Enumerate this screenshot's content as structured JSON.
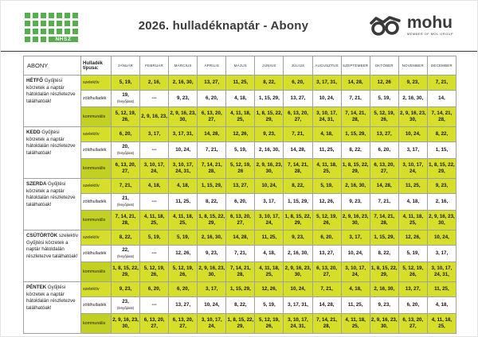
{
  "header": {
    "title": "2026. hulladéknaptár - Abony",
    "nhsz_logo_text": "NHSZ",
    "mohu_logo_text": "mohu",
    "mohu_subtext": "MEMBER OF MOL GROUP"
  },
  "colors": {
    "brand_green": "#57ae4e",
    "highlight_yellow_green": "#d6de2a",
    "kommunalis_label_green": "#c2d021",
    "logo_dark": "#3a3a3a"
  },
  "table": {
    "corner_label": "ABONY",
    "type_header": "Hulladék típusa:",
    "months": [
      "JANUÁR",
      "FEBRUÁR",
      "MÁRCIUS",
      "ÁPRILIS",
      "MÁJUS",
      "JÚNIUS",
      "JÚLIUS",
      "AUGUSZTUS",
      "SZEPTEMBER",
      "OKTÓBER",
      "NOVEMBER",
      "DECEMBER"
    ],
    "waste_types": [
      "szelektív",
      "zöldhulladék",
      "kommunális"
    ],
    "days": [
      {
        "name": "HÉTFŐ",
        "description": "Gyűjtési körzetek a naptár hátoldalán részletezve találhatóak!",
        "rows": [
          [
            "5, 19,",
            "2, 16,",
            "2, 16, 30,",
            "13, 27,",
            "11, 25,",
            "8, 22,",
            "6, 20,",
            "3, 17, 31,",
            "14, 28,",
            "12, 26",
            "9, 23,",
            "7, 21,"
          ],
          [
            "19,\n(fenyőjárat)",
            "---",
            "9, 23,",
            "6, 20,",
            "4, 18,",
            "1, 15, 29,",
            "13, 27,",
            "10, 24,",
            "7, 21,",
            "5, 19,",
            "2, 16, 30,",
            "14,"
          ],
          [
            "5, 12, 19, 26,",
            "2, 9, 16, 23,",
            "2, 9, 16, 23, 30,",
            "6, 13, 20, 27,",
            "4, 11, 18, 25,",
            "1, 8, 15, 22, 29,",
            "6, 13, 20, 27,",
            "3, 10, 17, 24, 31,",
            "7, 14, 21, 28,",
            "5, 12, 19, 26,",
            "2, 9, 16, 23, 30,",
            "7, 14, 21, 28,"
          ]
        ]
      },
      {
        "name": "KEDD",
        "description": "Gyűjtési körzetek a naptár hátoldalán részletezve találhatóak!",
        "rows": [
          [
            "6, 20,",
            "3, 17,",
            "3, 17, 31,",
            "14, 28,",
            "12, 26,",
            "9, 23,",
            "7, 21,",
            "4, 18,",
            "1, 15, 29,",
            "13, 27,",
            "10, 24,",
            "8, 22,"
          ],
          [
            "20,\n(fenyőjárat)",
            "---",
            "10, 24,",
            "7, 21,",
            "5, 19,",
            "2, 16, 30,",
            "14, 28,",
            "11, 25,",
            "8, 22,",
            "6, 20,",
            "3, 17,",
            "1, 15,"
          ],
          [
            "6, 13, 20, 27,",
            "3, 10, 17, 24,",
            "3, 10, 17, 24, 31,",
            "7, 14, 21, 28,",
            "5, 12, 19, 26",
            "2, 9, 16, 23, 30,",
            "7, 14, 21, 28,",
            "4, 11, 18, 25,",
            "1, 8, 15, 22, 29,",
            "6, 13, 20, 27,",
            "3, 10, 17, 24,",
            "1, 8, 15, 22, 29,"
          ]
        ]
      },
      {
        "name": "SZERDA",
        "description": "Gyűjtési körzetek a naptár hátoldalán részletezve találhatóak!",
        "rows": [
          [
            "7, 21,",
            "4, 18,",
            "4, 18,",
            "1, 15, 29,",
            "13, 27,",
            "10, 24,",
            "8, 22,",
            "5, 19,",
            "2, 16, 30,",
            "14, 28,",
            "11, 25,",
            "9, 23,"
          ],
          [
            "21,\n(fenyőjárat)",
            "---",
            "11, 25,",
            "8, 22,",
            "6, 20,",
            "3, 17,",
            "1, 15, 29,",
            "12, 26,",
            "9, 23,",
            "7, 21,",
            "4, 18,",
            "2, 16,"
          ],
          [
            "7, 14, 21, 28,",
            "4, 11, 18, 25,",
            "4, 11, 18, 25,",
            "1, 8, 15, 22, 29,",
            "6, 13, 20, 27,",
            "3, 10, 17, 24,",
            "1, 8, 15, 22, 29,",
            "5, 12, 19, 26,",
            "2, 9, 16, 23, 30,",
            "7, 14, 21, 28,",
            "4, 11, 18, 25,",
            "2, 9, 16, 23, 30,"
          ]
        ]
      },
      {
        "name": "CSÜTÖRTÖK",
        "description": "szelektív Gyűjtési körzetek a naptár hátoldalán részletezve találhatóak!",
        "rows": [
          [
            "8, 22,",
            "5, 19,",
            "5, 19,",
            "2, 16, 30,",
            "14, 28,",
            "11, 25,",
            "9, 23,",
            "6, 20,",
            "3, 17,",
            "1, 15, 29,",
            "12, 26,",
            "10, 24,"
          ],
          [
            "22,\n(fenyőjárat)",
            "---",
            "12, 26,",
            "9, 23,",
            "7, 21,",
            "4, 18,",
            "2, 16, 30,",
            "13, 27,",
            "10, 24,",
            "8, 22,",
            "5, 19,",
            "3, 17,"
          ],
          [
            "1, 8, 15, 22, 29,",
            "5, 12, 19, 26,",
            "5, 12, 19, 26,",
            "2, 9, 16, 23, 30,",
            "7, 14, 21, 28,",
            "4, 11, 18, 25,",
            "2, 9, 16, 23, 30,",
            "6, 13, 20, 27,",
            "3, 10, 17, 24,",
            "1, 8, 15, 22, 29,",
            "5, 12, 19, 26,",
            "3, 10, 17, 24, 31,"
          ]
        ]
      },
      {
        "name": "PÉNTEK",
        "description": "Gyűjtési körzetek a naptár hátoldalán részletezve találhatóak!",
        "rows": [
          [
            "9, 23,",
            "6, 20,",
            "6, 20,",
            "3, 17,",
            "1, 15, 29,",
            "12, 26,",
            "10, 24,",
            "7, 21,",
            "4, 18,",
            "2, 16, 30,",
            "13, 27,",
            "11, 25,"
          ],
          [
            "23,\n(fenyőjárat)",
            "---",
            "13, 27,",
            "10, 24,",
            "8, 22,",
            "5, 19,",
            "3, 17, 31,",
            "14, 28,",
            "11, 25,",
            "9, 23,",
            "6, 20,",
            "4, 18,"
          ],
          [
            "2, 9, 16, 23, 30,",
            "6, 13, 20, 27,",
            "6, 13, 20, 27,",
            "3, 10, 17, 24,",
            "1, 8, 15, 22, 29,",
            "5, 12, 19, 26,",
            "3, 10, 17, 24, 31,",
            "7, 14, 21, 28,",
            "4, 11, 18, 25,",
            "2, 9, 16, 23, 30,",
            "6, 13, 20, 27,",
            "4, 11, 18, 25,"
          ]
        ]
      }
    ]
  }
}
